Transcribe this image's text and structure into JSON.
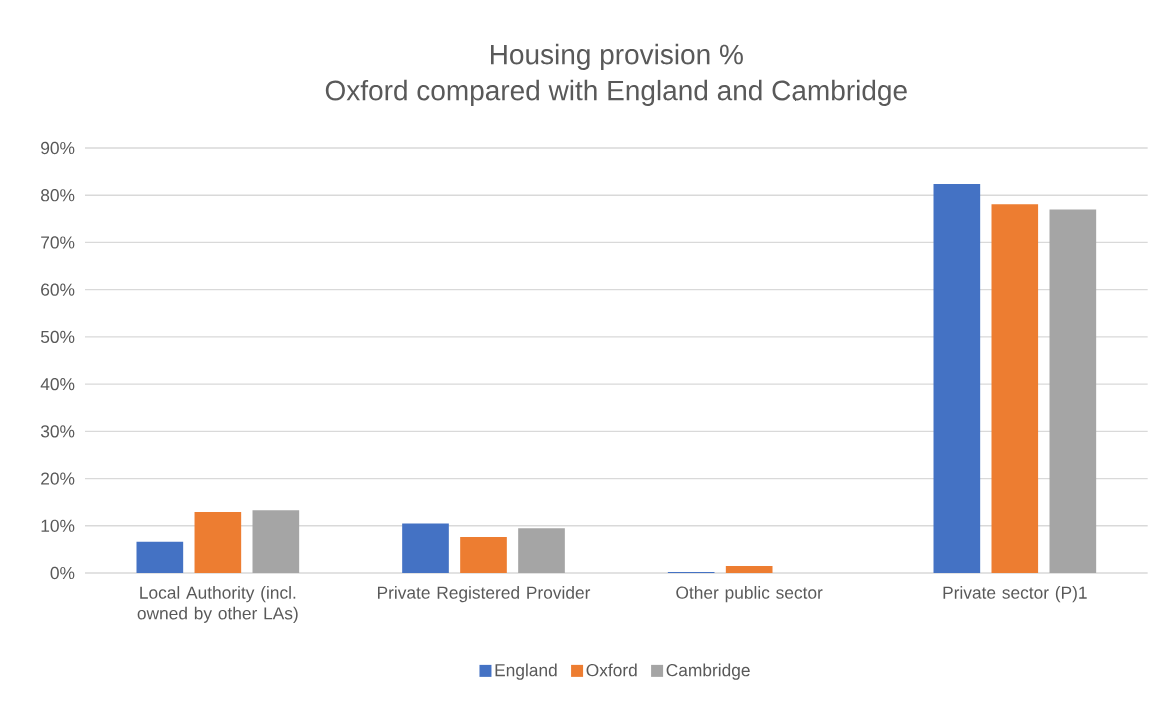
{
  "chart_data": {
    "type": "bar",
    "title": "Housing provision %",
    "subtitle": "Oxford compared with England and Cambridge",
    "categories": [
      "Local Authority (incl. owned by other LAs)",
      "Private Registered Provider",
      "Other public sector",
      "Private sector (P)1"
    ],
    "series": [
      {
        "name": "England",
        "color": "#4472c4",
        "values": [
          6.6,
          10.5,
          0.2,
          82.4
        ]
      },
      {
        "name": "Oxford",
        "color": "#ed7d31",
        "values": [
          12.9,
          7.6,
          1.5,
          78.1
        ]
      },
      {
        "name": "Cambridge",
        "color": "#a5a5a5",
        "values": [
          13.3,
          9.5,
          null,
          77.0
        ]
      }
    ],
    "ylim": [
      0,
      90
    ],
    "yticks": [
      {
        "value": 0,
        "label": "0%"
      },
      {
        "value": 10,
        "label": "10%"
      },
      {
        "value": 20,
        "label": "20%"
      },
      {
        "value": 30,
        "label": "30%"
      },
      {
        "value": 40,
        "label": "40%"
      },
      {
        "value": 50,
        "label": "50%"
      },
      {
        "value": 60,
        "label": "60%"
      },
      {
        "value": 70,
        "label": "70%"
      },
      {
        "value": 80,
        "label": "80%"
      },
      {
        "value": 90,
        "label": "90%"
      }
    ],
    "grid": "y",
    "legend": "bottom"
  }
}
